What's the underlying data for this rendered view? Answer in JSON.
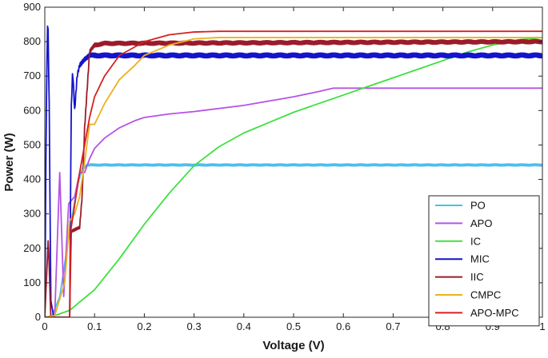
{
  "chart_data": {
    "type": "line",
    "title": "",
    "xlabel": "Voltage (V)",
    "ylabel": "Power (W)",
    "xlim": [
      0,
      1
    ],
    "ylim": [
      0,
      900
    ],
    "x_ticks": [
      "0",
      "0.1",
      "0.2",
      "0.3",
      "0.4",
      "0.5",
      "0.6",
      "0.7",
      "0.8",
      "0.9",
      "1"
    ],
    "y_ticks": [
      "0",
      "100",
      "200",
      "300",
      "400",
      "500",
      "600",
      "700",
      "800",
      "900"
    ],
    "grid": false,
    "legend_position": "bottom-right",
    "series": [
      {
        "name": "PO",
        "color": "#4DBEEE",
        "points": [
          [
            0,
            0
          ],
          [
            0.015,
            5
          ],
          [
            0.03,
            60
          ],
          [
            0.05,
            250
          ],
          [
            0.065,
            380
          ],
          [
            0.075,
            430
          ],
          [
            0.085,
            442
          ],
          [
            1,
            442
          ]
        ],
        "ripple": 6
      },
      {
        "name": "APO",
        "color": "#B553E6",
        "points": [
          [
            0,
            0
          ],
          [
            0.02,
            5
          ],
          [
            0.03,
            420
          ],
          [
            0.038,
            60
          ],
          [
            0.048,
            330
          ],
          [
            0.06,
            350
          ],
          [
            0.07,
            420
          ],
          [
            0.08,
            420
          ],
          [
            0.09,
            460
          ],
          [
            0.1,
            490
          ],
          [
            0.12,
            520
          ],
          [
            0.15,
            550
          ],
          [
            0.18,
            570
          ],
          [
            0.2,
            580
          ],
          [
            0.25,
            590
          ],
          [
            0.3,
            597
          ],
          [
            0.4,
            615
          ],
          [
            0.5,
            640
          ],
          [
            0.55,
            655
          ],
          [
            0.58,
            665
          ],
          [
            1,
            665
          ]
        ],
        "ripple": 0
      },
      {
        "name": "IC",
        "color": "#3FE03F",
        "points": [
          [
            0,
            0
          ],
          [
            0.02,
            5
          ],
          [
            0.05,
            20
          ],
          [
            0.1,
            80
          ],
          [
            0.15,
            170
          ],
          [
            0.2,
            270
          ],
          [
            0.25,
            360
          ],
          [
            0.3,
            440
          ],
          [
            0.35,
            495
          ],
          [
            0.4,
            535
          ],
          [
            0.45,
            565
          ],
          [
            0.5,
            595
          ],
          [
            0.55,
            620
          ],
          [
            0.6,
            645
          ],
          [
            0.65,
            670
          ],
          [
            0.7,
            695
          ],
          [
            0.75,
            720
          ],
          [
            0.8,
            745
          ],
          [
            0.85,
            770
          ],
          [
            0.9,
            790
          ],
          [
            0.95,
            805
          ],
          [
            1,
            812
          ]
        ],
        "ripple": 0
      },
      {
        "name": "MIC",
        "color": "#1414CC",
        "points": [
          [
            0,
            0
          ],
          [
            0.003,
            600
          ],
          [
            0.006,
            895
          ],
          [
            0.009,
            600
          ],
          [
            0.012,
            50
          ],
          [
            0.018,
            0
          ],
          [
            0.05,
            0
          ],
          [
            0.053,
            600
          ],
          [
            0.056,
            720
          ],
          [
            0.06,
            600
          ],
          [
            0.065,
            700
          ],
          [
            0.07,
            730
          ],
          [
            0.08,
            750
          ],
          [
            0.09,
            760
          ],
          [
            1,
            760
          ]
        ],
        "ripple": 14
      },
      {
        "name": "IIC",
        "color": "#9B1B2A",
        "points": [
          [
            0,
            0
          ],
          [
            0.007,
            230
          ],
          [
            0.012,
            0
          ],
          [
            0.05,
            0
          ],
          [
            0.053,
            250
          ],
          [
            0.07,
            260
          ],
          [
            0.075,
            350
          ],
          [
            0.08,
            550
          ],
          [
            0.09,
            770
          ],
          [
            0.1,
            790
          ],
          [
            0.12,
            795
          ],
          [
            1,
            800
          ]
        ],
        "ripple": 12
      },
      {
        "name": "CMPC",
        "color": "#EDB120",
        "points": [
          [
            0,
            0
          ],
          [
            0.02,
            5
          ],
          [
            0.04,
            100
          ],
          [
            0.05,
            280
          ],
          [
            0.06,
            300
          ],
          [
            0.07,
            350
          ],
          [
            0.08,
            450
          ],
          [
            0.09,
            560
          ],
          [
            0.1,
            560
          ],
          [
            0.12,
            620
          ],
          [
            0.15,
            690
          ],
          [
            0.18,
            730
          ],
          [
            0.2,
            760
          ],
          [
            0.25,
            790
          ],
          [
            0.3,
            808
          ],
          [
            0.35,
            812
          ],
          [
            1,
            812
          ]
        ],
        "ripple": 0
      },
      {
        "name": "APO-MPC",
        "color": "#D62020",
        "points": [
          [
            0,
            0
          ],
          [
            0.05,
            0
          ],
          [
            0.052,
            250
          ],
          [
            0.07,
            420
          ],
          [
            0.09,
            580
          ],
          [
            0.1,
            640
          ],
          [
            0.12,
            700
          ],
          [
            0.15,
            760
          ],
          [
            0.2,
            800
          ],
          [
            0.25,
            820
          ],
          [
            0.3,
            828
          ],
          [
            0.35,
            830
          ],
          [
            1,
            830
          ]
        ],
        "ripple": 0
      }
    ]
  }
}
